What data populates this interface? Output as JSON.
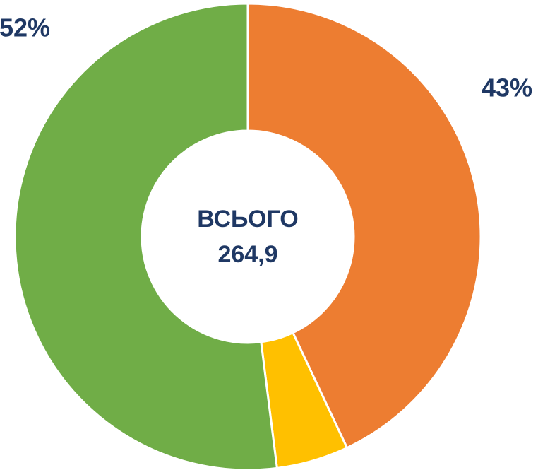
{
  "chart_data": {
    "type": "pie",
    "values": [
      43,
      5,
      52
    ],
    "value_labels": [
      "43%",
      null,
      "52%"
    ],
    "colors": [
      "#ED7D31",
      "#FFC000",
      "#70AD47"
    ],
    "center_title": "ВСЬОГО",
    "center_value": "264,9"
  }
}
